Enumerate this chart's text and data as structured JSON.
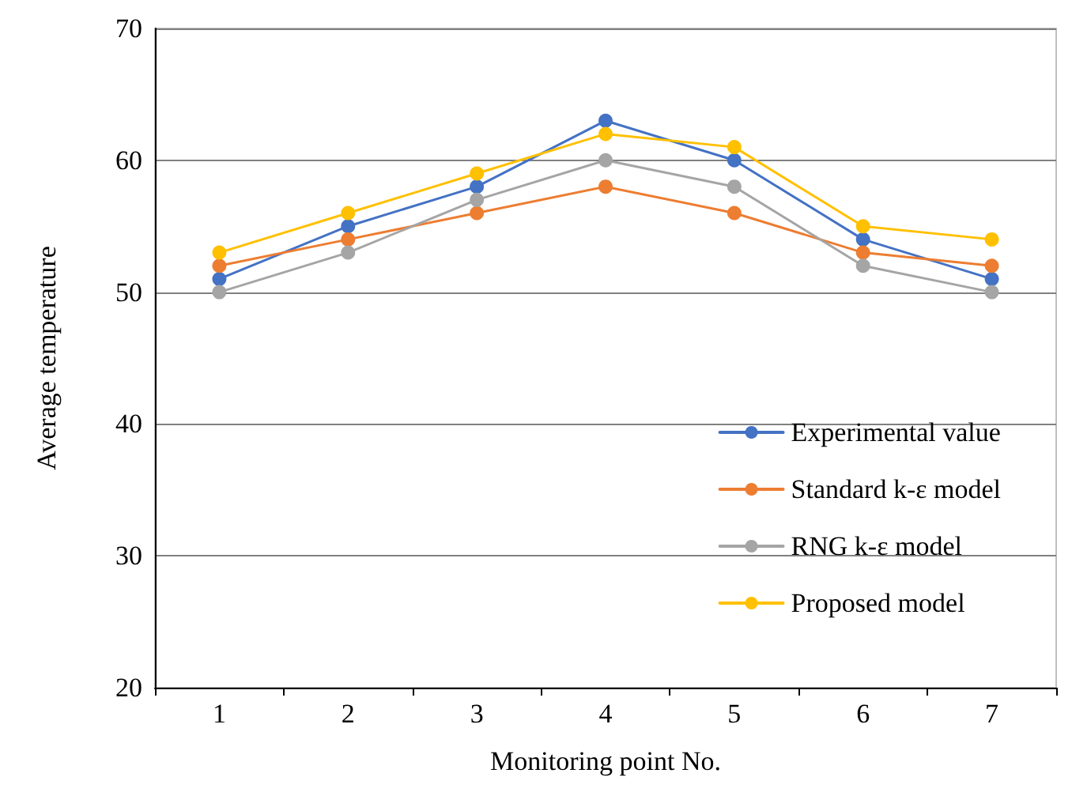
{
  "chart_data": {
    "type": "line",
    "xlabel": "Monitoring point No.",
    "ylabel": "Average temperature",
    "categories": [
      "1",
      "2",
      "3",
      "4",
      "5",
      "6",
      "7"
    ],
    "series": [
      {
        "name": "Experimental value",
        "color": "#4472c4",
        "values": [
          51,
          55,
          58,
          63,
          60,
          54,
          51
        ]
      },
      {
        "name": "Standard k-ε model",
        "color": "#ed7d31",
        "values": [
          52,
          54,
          56,
          58,
          56,
          53,
          52
        ]
      },
      {
        "name": "RNG k-ε model",
        "color": "#a5a5a5",
        "values": [
          50,
          53,
          57,
          60,
          58,
          52,
          50
        ]
      },
      {
        "name": "Proposed model",
        "color": "#ffc000",
        "values": [
          53,
          56,
          59,
          62,
          61,
          55,
          54
        ]
      }
    ],
    "ylim": [
      20,
      70
    ],
    "yticks": [
      20,
      30,
      40,
      50,
      60,
      70
    ],
    "grid": "y",
    "legend": "bottom right",
    "marker": "circle",
    "line_style": "solid"
  }
}
